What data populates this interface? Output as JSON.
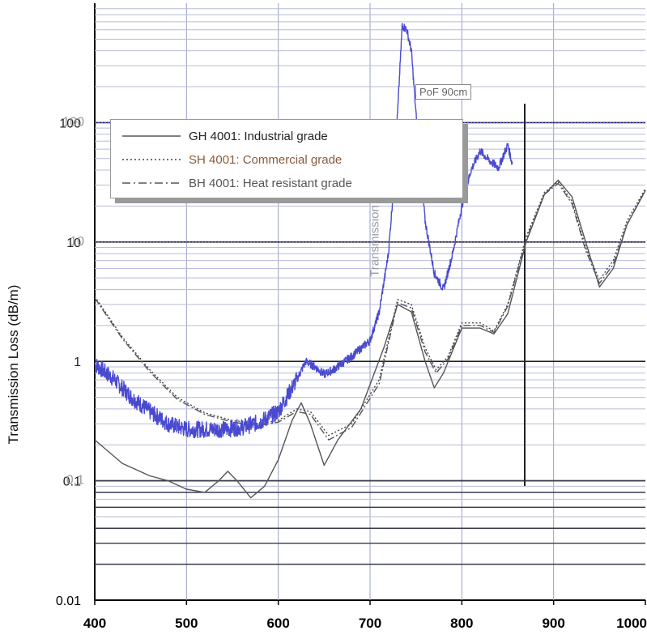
{
  "chart_data": {
    "type": "line",
    "ylabel": "Transmission Loss (dB/m)",
    "ylabel_faded": "Transmission Loss (dB/m)",
    "y_scale": "log",
    "ylim": [
      0.01,
      1000
    ],
    "xlim": [
      400,
      1000
    ],
    "x_ticks": [
      "400",
      "500",
      "600",
      "700",
      "800",
      "900",
      "1000"
    ],
    "y_ticks": [
      "0.01",
      "0.1",
      "1",
      "10",
      "100"
    ],
    "y_ticks_overlay": [
      "0.1",
      "10",
      "100"
    ],
    "grid": true,
    "legend_position": "top-left",
    "inset_label": "PoF 90cm",
    "series": [
      {
        "name": "GH 4001: Industrial grade",
        "style": "solid",
        "color": "#555555",
        "x": [
          400,
          430,
          460,
          480,
          500,
          520,
          535,
          545,
          555,
          570,
          585,
          600,
          615,
          625,
          635,
          650,
          665,
          690,
          715,
          730,
          745,
          760,
          770,
          780,
          800,
          820,
          835,
          850,
          870,
          890,
          905,
          920,
          935,
          950,
          965,
          980,
          1000
        ],
        "values": [
          0.22,
          0.14,
          0.11,
          0.1,
          0.085,
          0.08,
          0.1,
          0.12,
          0.1,
          0.072,
          0.09,
          0.15,
          0.32,
          0.45,
          0.3,
          0.135,
          0.22,
          0.4,
          1.3,
          3.0,
          2.6,
          1.0,
          0.6,
          0.8,
          1.9,
          1.9,
          1.7,
          2.5,
          10,
          25,
          33,
          24,
          10,
          4.2,
          6,
          14,
          27
        ]
      },
      {
        "name": "SH 4001: Commercial grade",
        "style": "dotted",
        "color": "#444444",
        "x": [
          400,
          430,
          460,
          490,
          520,
          550,
          580,
          600,
          620,
          635,
          655,
          680,
          710,
          730,
          745,
          760,
          772,
          785,
          800,
          820,
          835,
          850,
          870,
          890,
          905,
          920,
          935,
          950,
          965,
          980,
          1000
        ],
        "values": [
          3.5,
          1.6,
          0.85,
          0.5,
          0.37,
          0.32,
          0.3,
          0.32,
          0.4,
          0.38,
          0.24,
          0.3,
          0.7,
          3.3,
          3.0,
          1.3,
          0.85,
          1.1,
          2.1,
          2.1,
          1.8,
          3.0,
          11,
          26,
          32,
          22,
          9,
          4.8,
          7,
          15,
          28
        ]
      },
      {
        "name": "BH 4001: Heat resistant grade",
        "style": "dash-dot",
        "color": "#555555",
        "x": [
          400,
          430,
          460,
          490,
          520,
          550,
          580,
          600,
          620,
          635,
          655,
          680,
          710,
          730,
          745,
          760,
          772,
          785,
          800,
          820,
          835,
          850,
          870,
          890,
          905,
          920,
          935,
          950,
          965,
          980,
          1000
        ],
        "values": [
          3.4,
          1.55,
          0.82,
          0.48,
          0.36,
          0.31,
          0.29,
          0.31,
          0.38,
          0.36,
          0.22,
          0.28,
          0.65,
          3.1,
          2.8,
          1.2,
          0.8,
          1.05,
          2.0,
          2.0,
          1.75,
          2.9,
          10.5,
          25,
          31,
          21,
          8.5,
          4.5,
          6.5,
          14,
          27
        ]
      },
      {
        "name": "PoF 90cm",
        "style": "noisy",
        "color": "#4a4ad0",
        "x": [
          400,
          420,
          440,
          460,
          480,
          500,
          520,
          540,
          560,
          580,
          600,
          620,
          630,
          640,
          650,
          660,
          680,
          700,
          710,
          720,
          725,
          730,
          735,
          740,
          745,
          750,
          760,
          770,
          780,
          790,
          800,
          810,
          820,
          830,
          840,
          850,
          855
        ],
        "values": [
          0.95,
          0.72,
          0.5,
          0.38,
          0.3,
          0.27,
          0.27,
          0.27,
          0.28,
          0.31,
          0.38,
          0.7,
          1.0,
          0.9,
          0.78,
          0.85,
          1.1,
          1.5,
          2.6,
          8,
          25,
          120,
          650,
          600,
          400,
          120,
          15,
          5.5,
          4.0,
          8,
          20,
          40,
          58,
          48,
          42,
          65,
          45
        ]
      }
    ]
  }
}
